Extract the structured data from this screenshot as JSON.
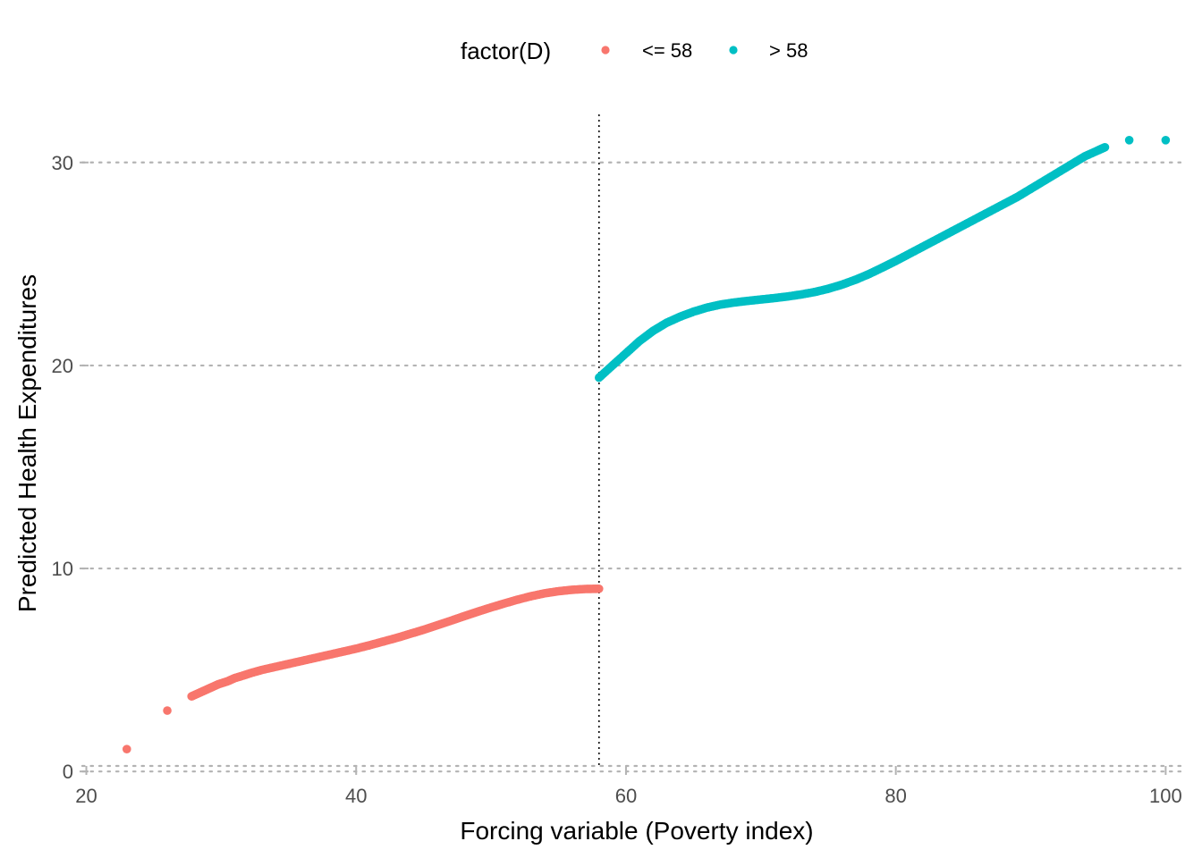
{
  "chart_data": {
    "type": "scatter",
    "title": "",
    "xlabel": "Forcing variable (Poverty index)",
    "ylabel": "Predicted Health Expenditures",
    "xlim": [
      19.7,
      101.5
    ],
    "ylim": [
      -0.3,
      32.5
    ],
    "x_ticks": [
      "20",
      "40",
      "60",
      "80",
      "100"
    ],
    "y_ticks": [
      "0",
      "10",
      "20",
      "30"
    ],
    "cutoff": 58,
    "grid": "horizontal-dotted",
    "legend": {
      "title": "factor(D)",
      "position": "top"
    },
    "series": [
      {
        "name": "<= 58",
        "color": "#F8766D",
        "points": [
          [
            23.0,
            1.1
          ],
          [
            26.0,
            3.0
          ],
          [
            27.8,
            3.7
          ],
          [
            28.3,
            3.85
          ],
          [
            28.8,
            4.0
          ],
          [
            29.3,
            4.15
          ],
          [
            29.8,
            4.3
          ],
          [
            30.5,
            4.45
          ],
          [
            31.0,
            4.6
          ],
          [
            31.6,
            4.72
          ],
          [
            32.2,
            4.85
          ],
          [
            33.0,
            5.0
          ],
          [
            34.0,
            5.15
          ],
          [
            35.0,
            5.3
          ],
          [
            36.0,
            5.45
          ],
          [
            37.0,
            5.6
          ],
          [
            38.0,
            5.75
          ],
          [
            39.0,
            5.9
          ],
          [
            40.0,
            6.05
          ],
          [
            41.0,
            6.22
          ],
          [
            42.0,
            6.4
          ],
          [
            43.0,
            6.58
          ],
          [
            44.0,
            6.78
          ],
          [
            45.0,
            6.98
          ],
          [
            46.0,
            7.2
          ],
          [
            47.0,
            7.42
          ],
          [
            48.0,
            7.65
          ],
          [
            49.0,
            7.87
          ],
          [
            50.0,
            8.08
          ],
          [
            51.0,
            8.28
          ],
          [
            52.0,
            8.47
          ],
          [
            53.0,
            8.64
          ],
          [
            54.0,
            8.78
          ],
          [
            55.0,
            8.88
          ],
          [
            56.0,
            8.95
          ],
          [
            57.0,
            8.99
          ],
          [
            58.0,
            9.0
          ]
        ]
      },
      {
        "name": "> 58",
        "color": "#00BFC4",
        "points": [
          [
            58.0,
            19.4
          ],
          [
            59.0,
            20.0
          ],
          [
            60.0,
            20.6
          ],
          [
            61.0,
            21.2
          ],
          [
            62.0,
            21.7
          ],
          [
            63.0,
            22.1
          ],
          [
            64.0,
            22.4
          ],
          [
            65.0,
            22.65
          ],
          [
            66.0,
            22.85
          ],
          [
            67.0,
            23.0
          ],
          [
            68.0,
            23.1
          ],
          [
            69.0,
            23.18
          ],
          [
            70.0,
            23.25
          ],
          [
            71.0,
            23.32
          ],
          [
            72.0,
            23.4
          ],
          [
            73.0,
            23.5
          ],
          [
            74.0,
            23.62
          ],
          [
            75.0,
            23.78
          ],
          [
            76.0,
            23.98
          ],
          [
            77.0,
            24.22
          ],
          [
            78.0,
            24.5
          ],
          [
            79.0,
            24.82
          ],
          [
            80.0,
            25.15
          ],
          [
            81.0,
            25.5
          ],
          [
            82.0,
            25.85
          ],
          [
            83.0,
            26.2
          ],
          [
            84.0,
            26.55
          ],
          [
            85.0,
            26.9
          ],
          [
            86.0,
            27.25
          ],
          [
            87.0,
            27.6
          ],
          [
            88.0,
            27.95
          ],
          [
            89.0,
            28.3
          ],
          [
            90.0,
            28.7
          ],
          [
            91.0,
            29.1
          ],
          [
            92.0,
            29.5
          ],
          [
            93.0,
            29.9
          ],
          [
            94.0,
            30.3
          ],
          [
            95.0,
            30.6
          ],
          [
            95.5,
            30.75
          ],
          [
            97.3,
            31.1
          ],
          [
            100.0,
            31.1
          ]
        ]
      }
    ]
  }
}
